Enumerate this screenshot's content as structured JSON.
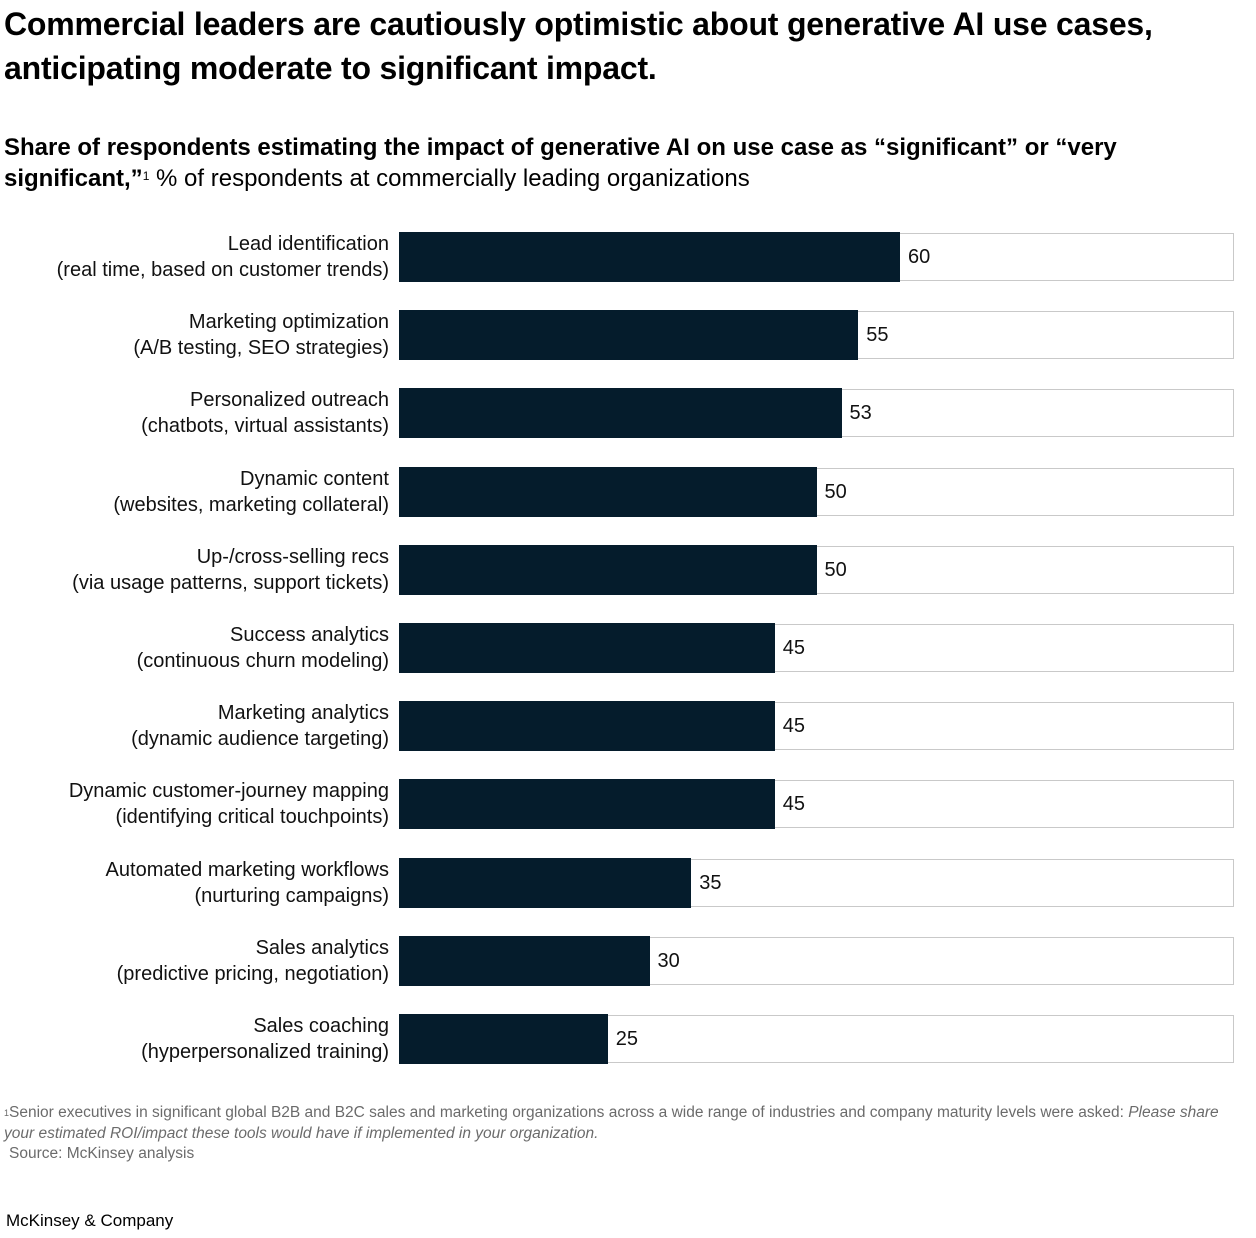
{
  "title": "Commercial leaders are cautiously optimistic about generative AI use cases, anticipating moderate to significant impact.",
  "subtitle": {
    "bold": "Share of respondents estimating the impact of generative AI on use case as “significant” or “very significant,”",
    "footnote_marker": "1",
    "regular": " % of respondents at commercially leading organizations"
  },
  "chart_data": {
    "type": "bar",
    "orientation": "horizontal",
    "title": "Share of respondents estimating the impact of generative AI on use case as “significant” or “very significant,”",
    "xlabel": "% of respondents at commercially leading organizations",
    "ylabel": "",
    "xlim": [
      0,
      100
    ],
    "grid": false,
    "categories": [
      {
        "line1": "Lead identification",
        "line2": "(real time, based on customer trends)"
      },
      {
        "line1": "Marketing optimization",
        "line2": "(A/B testing, SEO strategies)"
      },
      {
        "line1": "Personalized outreach",
        "line2": "(chatbots, virtual assistants)"
      },
      {
        "line1": "Dynamic content",
        "line2": "(websites, marketing collateral)"
      },
      {
        "line1": "Up-/cross-selling recs",
        "line2": "(via usage patterns, support tickets)"
      },
      {
        "line1": "Success analytics",
        "line2": "(continuous churn modeling)"
      },
      {
        "line1": "Marketing analytics",
        "line2": "(dynamic audience targeting)"
      },
      {
        "line1": "Dynamic customer-journey mapping",
        "line2": "(identifying critical touchpoints)"
      },
      {
        "line1": "Automated marketing workflows",
        "line2": "(nurturing campaigns)"
      },
      {
        "line1": "Sales analytics",
        "line2": "(predictive pricing, negotiation)"
      },
      {
        "line1": "Sales coaching",
        "line2": "(hyperpersonalized training)"
      }
    ],
    "values": [
      60,
      55,
      53,
      50,
      50,
      45,
      45,
      45,
      35,
      30,
      25
    ],
    "bar_color": "#051c2c",
    "track_border_color": "#c9c9c9"
  },
  "footnote": {
    "marker": "1",
    "text": "Senior executives in significant global B2B and B2C sales and marketing organizations across a wide range of industries and company maturity levels were asked: ",
    "italic": "Please share your estimated ROI/impact these tools would have if implemented in your organization.",
    "source": "Source: McKinsey analysis"
  },
  "brand": "McKinsey & Company"
}
